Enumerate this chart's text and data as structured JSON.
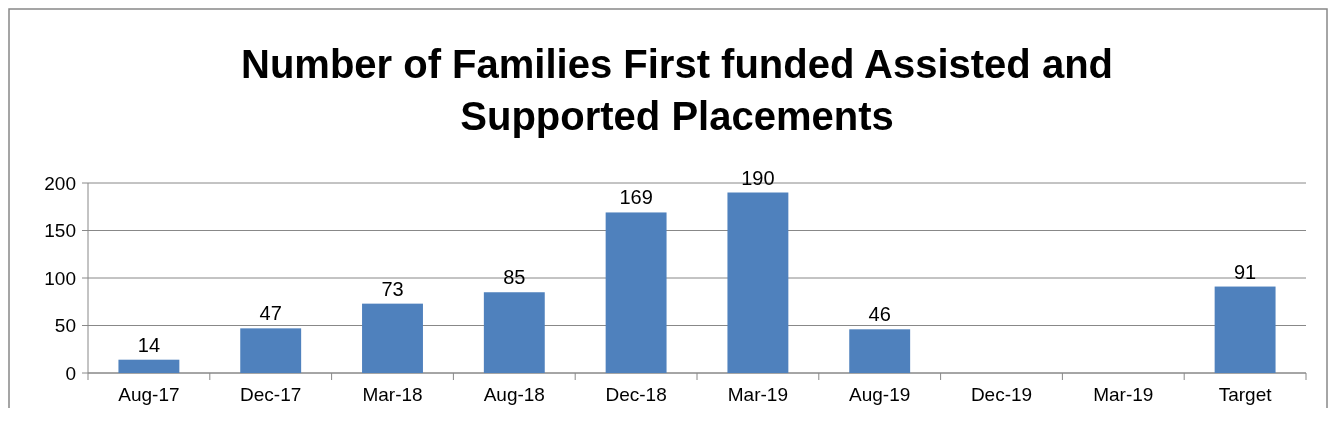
{
  "chart_data": {
    "type": "bar",
    "title": "Number of Families First funded Assisted and Supported Placements",
    "categories": [
      "Aug-17",
      "Dec-17",
      "Mar-18",
      "Aug-18",
      "Dec-18",
      "Mar-19",
      "Aug-19",
      "Dec-19",
      "Mar-19",
      "Target"
    ],
    "values": [
      14,
      47,
      73,
      85,
      169,
      190,
      46,
      null,
      null,
      91
    ],
    "color": "#4f81bd",
    "ylim": [
      0,
      200
    ],
    "yticks": [
      0,
      50,
      100,
      150,
      200
    ],
    "grid": "y",
    "data_labels": true
  }
}
